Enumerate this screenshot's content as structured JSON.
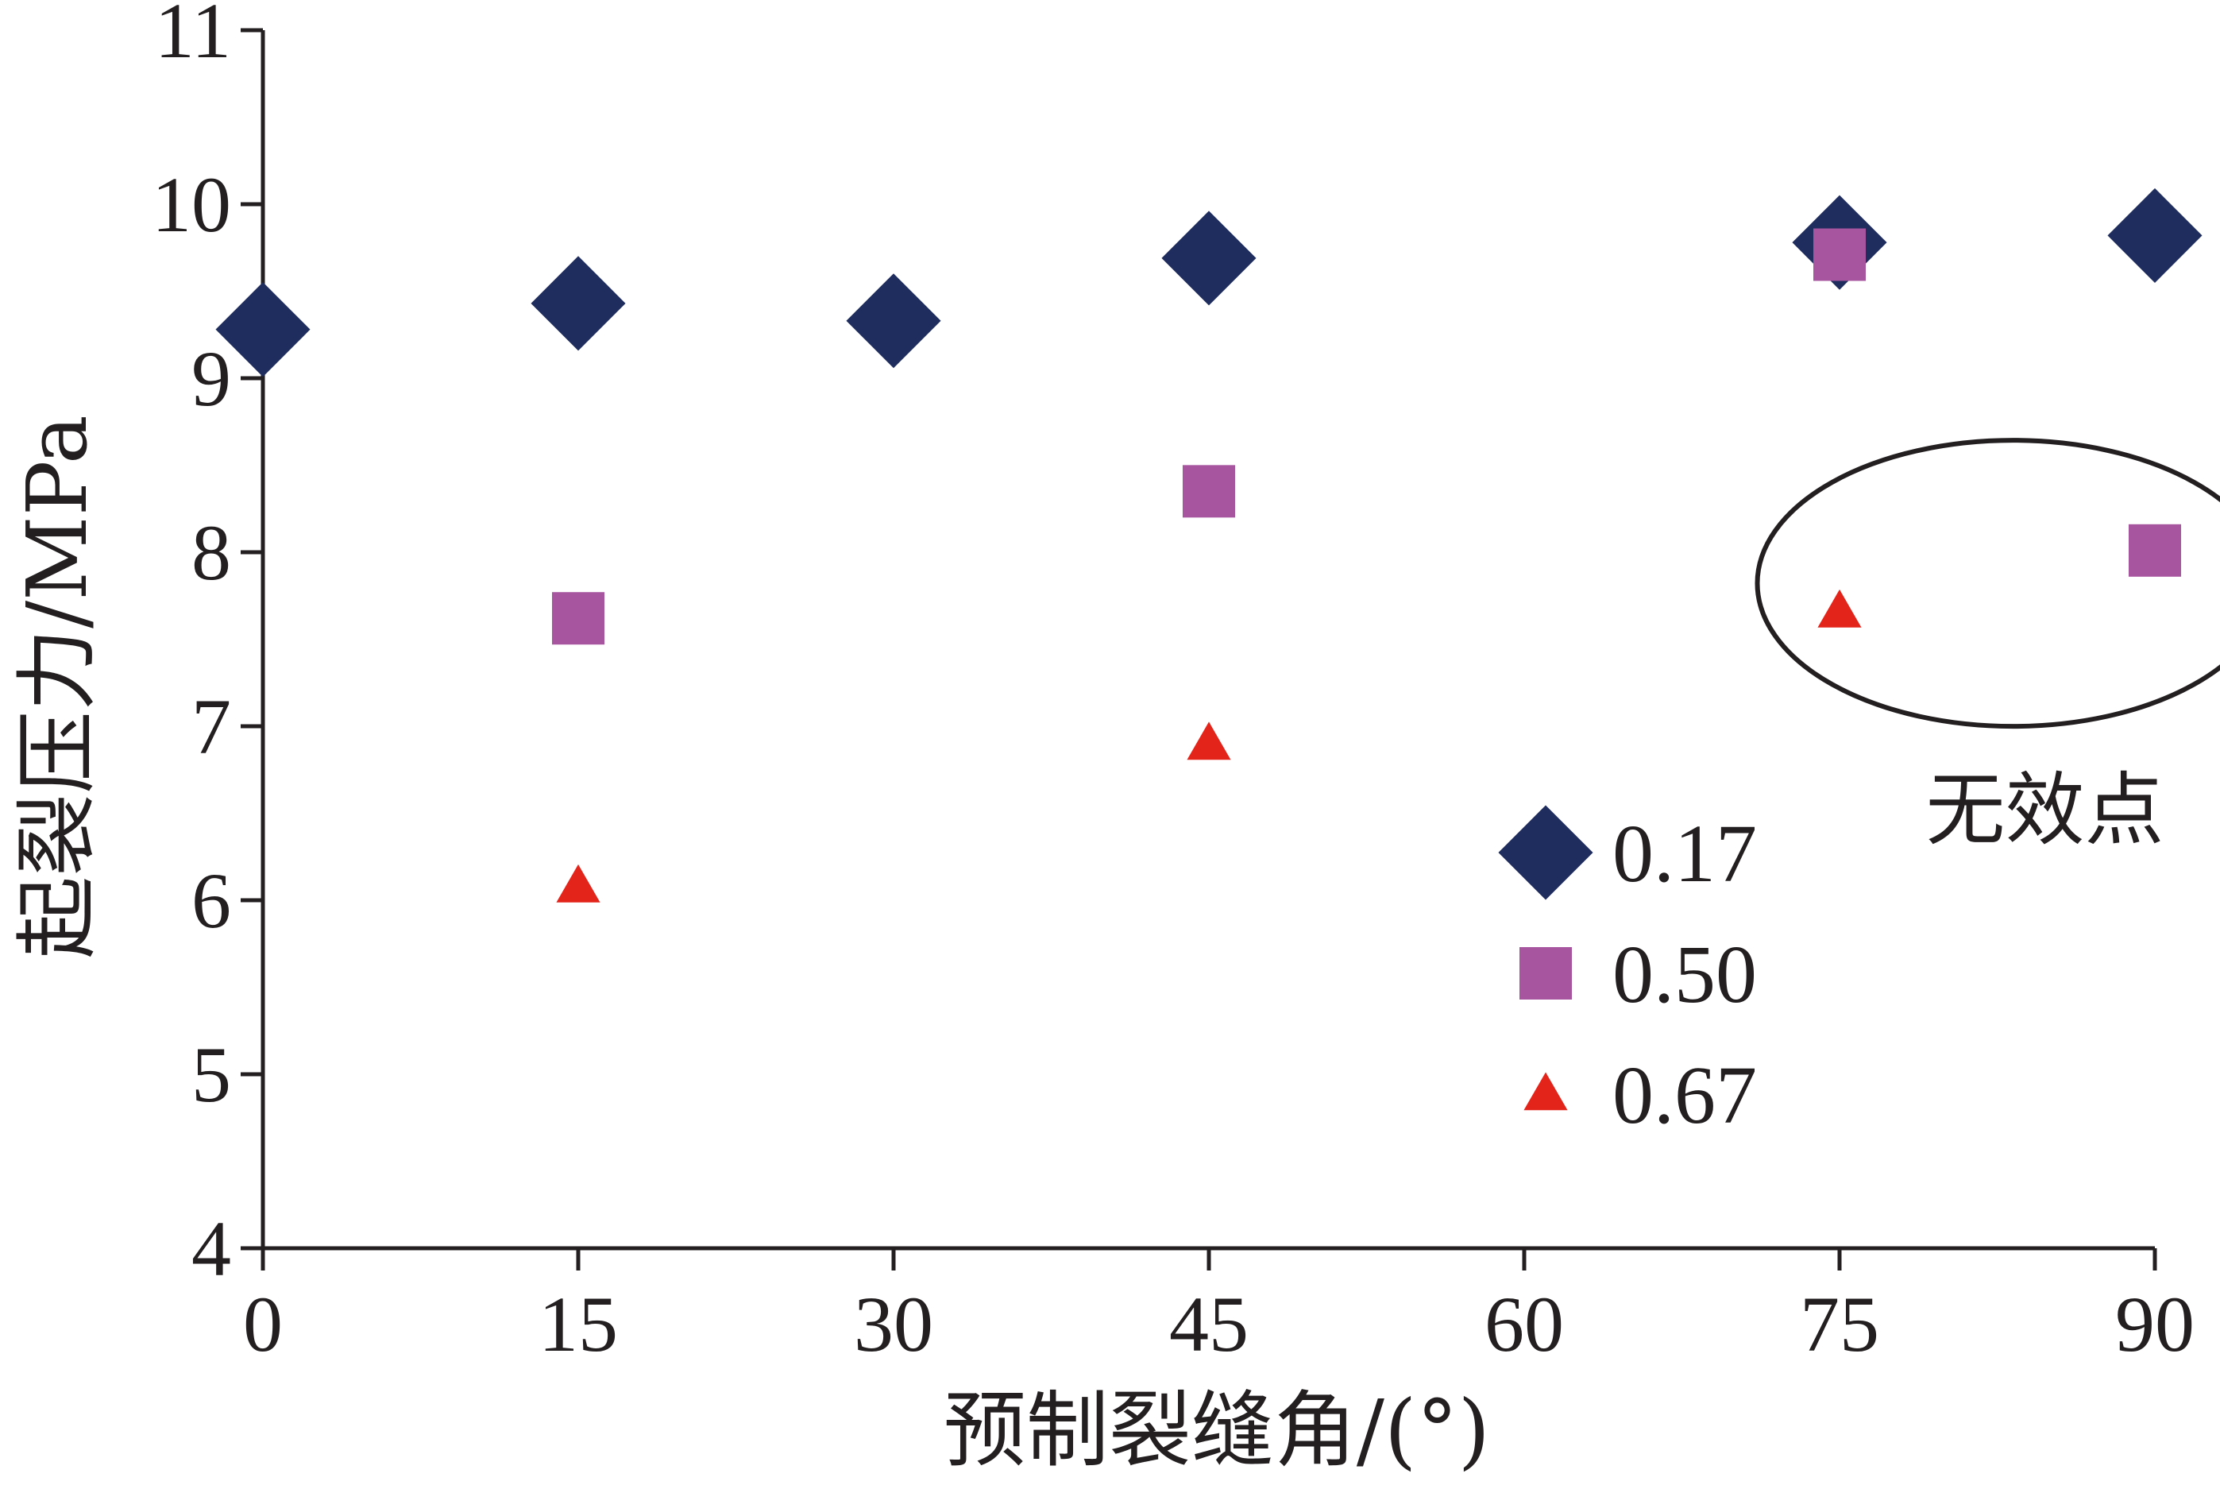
{
  "chart_data": {
    "type": "scatter",
    "xlabel": "预制裂缝角/(°)",
    "ylabel": "起裂压力/MPa",
    "xlim": [
      0,
      90
    ],
    "ylim": [
      4,
      11
    ],
    "xticks": [
      "0",
      "15",
      "30",
      "45",
      "60",
      "75",
      "90"
    ],
    "yticks": [
      "4",
      "5",
      "6",
      "7",
      "8",
      "9",
      "10",
      "11"
    ],
    "grid": false,
    "legend_position": "bottom-center",
    "series": [
      {
        "name": "0.17",
        "marker": "diamond",
        "color": "#1f2d5e",
        "points": [
          [
            0,
            9.28
          ],
          [
            15,
            9.43
          ],
          [
            30,
            9.33
          ],
          [
            45,
            9.69
          ],
          [
            75,
            9.78
          ],
          [
            90,
            9.82
          ]
        ]
      },
      {
        "name": "0.50",
        "marker": "square",
        "color": "#a7559f",
        "points": [
          [
            15,
            7.62
          ],
          [
            45,
            8.35
          ],
          [
            75,
            9.71
          ],
          [
            90,
            8.01
          ]
        ]
      },
      {
        "name": "0.67",
        "marker": "triangle",
        "color": "#e3241b",
        "points": [
          [
            15,
            6.08
          ],
          [
            45,
            6.9
          ],
          [
            75,
            7.66
          ]
        ]
      }
    ],
    "annotations": [
      {
        "text": "无效点",
        "encloses": [
          [
            75,
            7.66
          ],
          [
            90,
            8.01
          ]
        ]
      }
    ]
  }
}
